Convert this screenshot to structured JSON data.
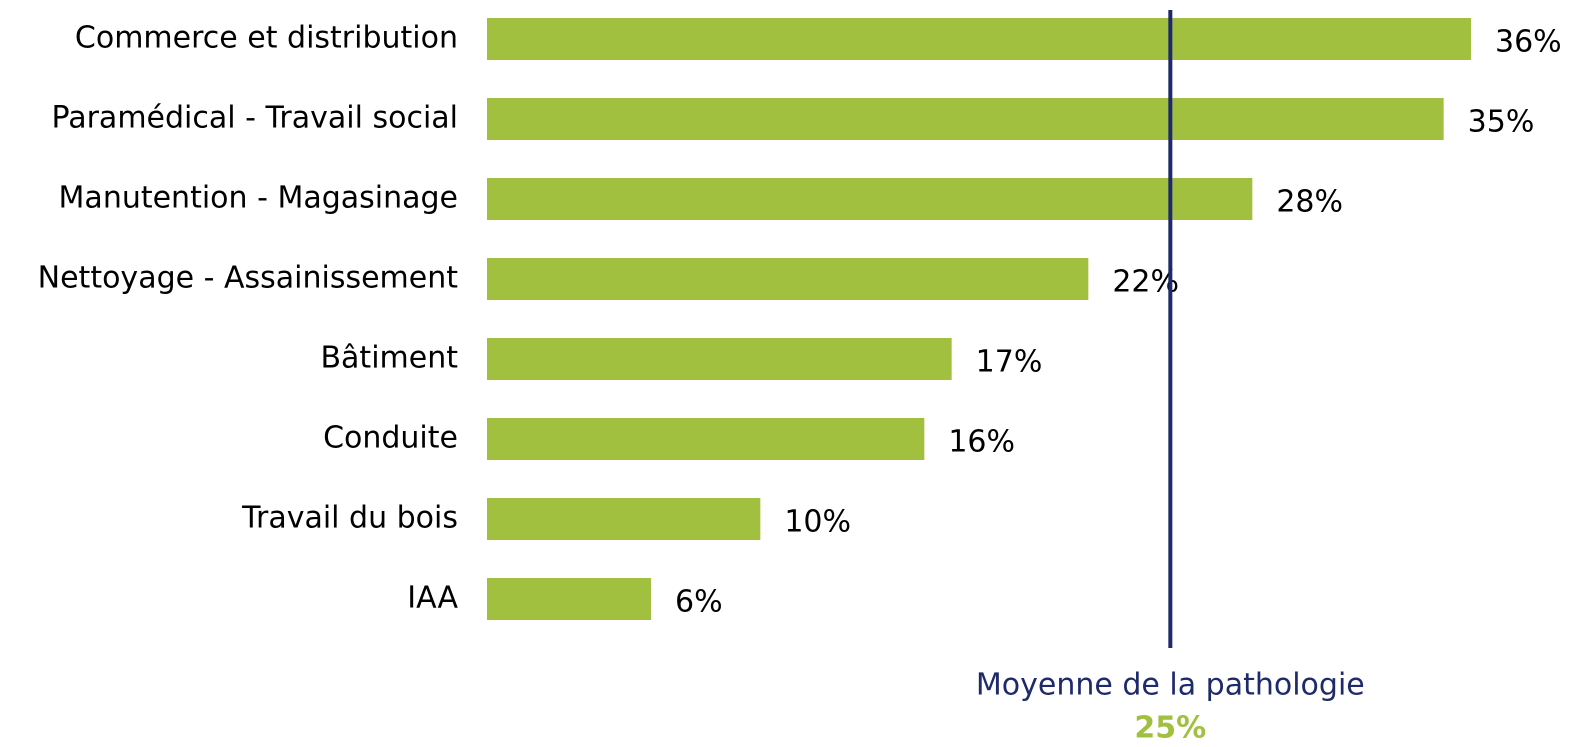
{
  "chart_data": {
    "type": "hbar",
    "categories": [
      "Commerce et distribution",
      "Paramédical - Travail social",
      "Manutention - Magasinage",
      "Nettoyage - Assainissement",
      "Bâtiment",
      "Conduite",
      "Travail du bois",
      "IAA"
    ],
    "values": [
      36,
      35,
      28,
      22,
      17,
      16,
      10,
      6
    ],
    "value_labels": [
      "36%",
      "35%",
      "28%",
      "22%",
      "17%",
      "16%",
      "10%",
      "6%"
    ],
    "color": "#a2c03f",
    "reference_line": {
      "name": "Moyenne de la pathologie",
      "value": 25,
      "label": "25%",
      "color": "#1f2a6b",
      "label_color": "#a2c03f"
    }
  }
}
